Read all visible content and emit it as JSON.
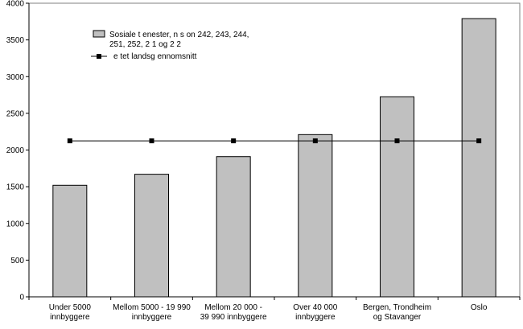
{
  "chart_data": {
    "type": "bar",
    "title": "",
    "xlabel": "",
    "ylabel": "",
    "ylim": [
      0,
      4000
    ],
    "yticks": [
      0,
      500,
      1000,
      1500,
      2000,
      2500,
      3000,
      3500,
      4000
    ],
    "grid": false,
    "legend_position": "top-left",
    "categories": [
      [
        "Under 5000",
        "innbyggere"
      ],
      [
        "Mellom 5000 - 19 990",
        "innbyggere"
      ],
      [
        "Mellom 20 000 -",
        "39 990 innbyggere"
      ],
      [
        "Over 40 000",
        "innbyggere"
      ],
      [
        "Bergen, Trondheim",
        "og Stavanger"
      ],
      [
        "Oslo"
      ]
    ],
    "series": [
      {
        "name": [
          "Sosiale t enester,    n  s on 242, 243, 244,",
          "251, 252, 2  1 og 2  2"
        ],
        "type": "bar",
        "color": "#c0c0c0",
        "values": [
          1520,
          1670,
          1910,
          2210,
          2725,
          3790
        ]
      },
      {
        "name": [
          "e  tet landsg  ennomsnitt"
        ],
        "type": "line",
        "color": "#000000",
        "values": [
          2125,
          2125,
          2125,
          2125,
          2125,
          2125
        ]
      }
    ]
  }
}
